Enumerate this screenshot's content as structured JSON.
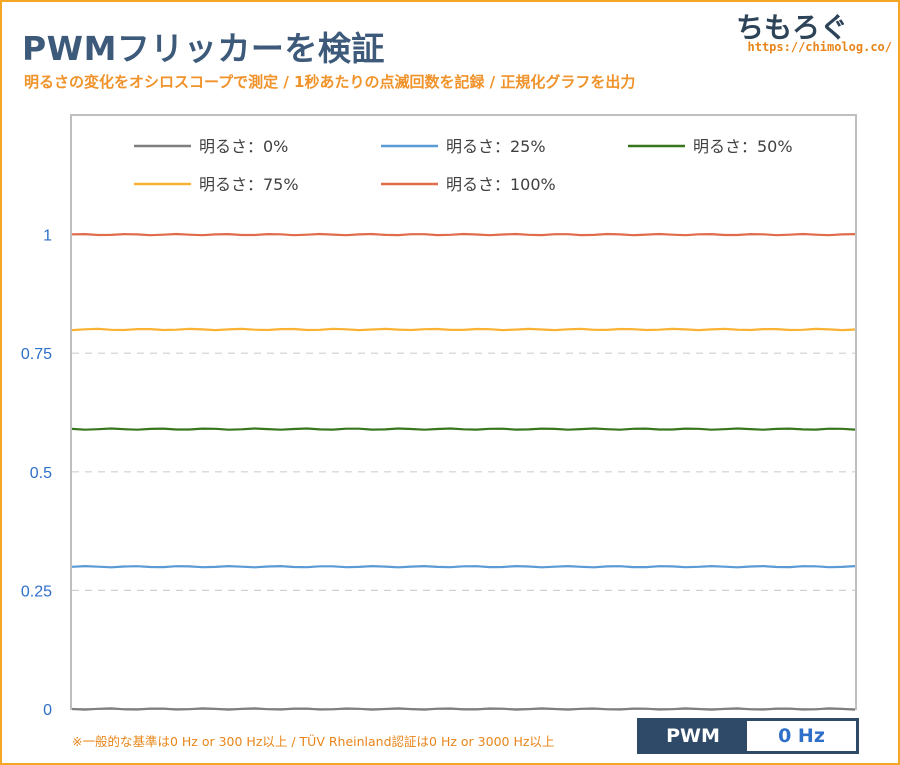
{
  "header": {
    "title": "PWMフリッカーを検証",
    "subtitle": "明るさの変化をオシロスコープで測定 / 1秒あたりの点滅回数を記録 / 正規化グラフを出力"
  },
  "logo": {
    "text": "ちもろぐ",
    "url": "https://chimolog.co/"
  },
  "footnote": "※一般的な基準は0 Hz or 300 Hz以上 / TÜV Rheinland認証は0 Hz or 3000 Hz以上",
  "pwm_badge": {
    "label": "PWM",
    "value": "0 Hz"
  },
  "colors": {
    "frame": "#f5a623",
    "title": "#3d5a7a",
    "accent_orange": "#f0932b",
    "tick_label": "#2d6fc9",
    "badge_bg": "#2f4a69"
  },
  "chart_data": {
    "type": "line",
    "y_ticks": [
      0,
      0.25,
      0.5,
      0.75,
      1
    ],
    "y_tick_labels": [
      "0",
      "0.25",
      "0.5",
      "0.75",
      "1"
    ],
    "ylim": [
      0,
      1.25
    ],
    "grid": "horizontal dashed",
    "legend_placement": "top",
    "series": [
      {
        "name": "明るさ：0%",
        "value": 0.0,
        "color": "#7f7f7f"
      },
      {
        "name": "明るさ：25%",
        "value": 0.3,
        "color": "#5b9bd5"
      },
      {
        "name": "明るさ：50%",
        "value": 0.59,
        "color": "#38761d"
      },
      {
        "name": "明るさ：75%",
        "value": 0.8,
        "color": "#f9b233"
      },
      {
        "name": "明るさ：100%",
        "value": 1.0,
        "color": "#e06c4c"
      }
    ]
  }
}
